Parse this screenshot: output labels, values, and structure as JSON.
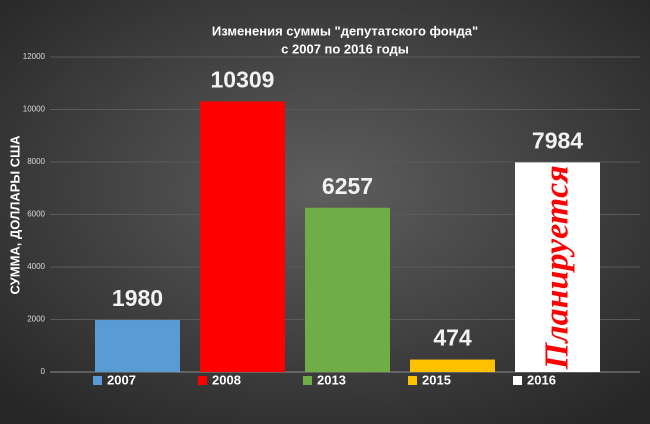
{
  "chart_data": {
    "type": "bar",
    "title": "Изменения суммы \"депутатского фонда\"",
    "subtitle": "с 2007 по 2016 годы",
    "y_label": "СУММА, ДОЛЛАРЫ США",
    "series": [
      {
        "name": "2007",
        "color": "#5b9bd5",
        "values": [
          1980
        ]
      },
      {
        "name": "2008",
        "color": "#ff0000",
        "values": [
          10309
        ]
      },
      {
        "name": "2013",
        "color": "#70ad47",
        "values": [
          6257
        ]
      },
      {
        "name": "2015",
        "color": "#ffc000",
        "values": [
          474
        ]
      },
      {
        "name": "2016",
        "color": "#ffffff",
        "values": [
          7984
        ]
      }
    ],
    "annotations": [
      {
        "text": "Планируется",
        "series": 4
      }
    ],
    "ylim": [
      0,
      12000
    ],
    "yticks": [
      0,
      2000,
      4000,
      6000,
      8000,
      10000,
      12000
    ],
    "grid": true,
    "legend": "bottom"
  }
}
